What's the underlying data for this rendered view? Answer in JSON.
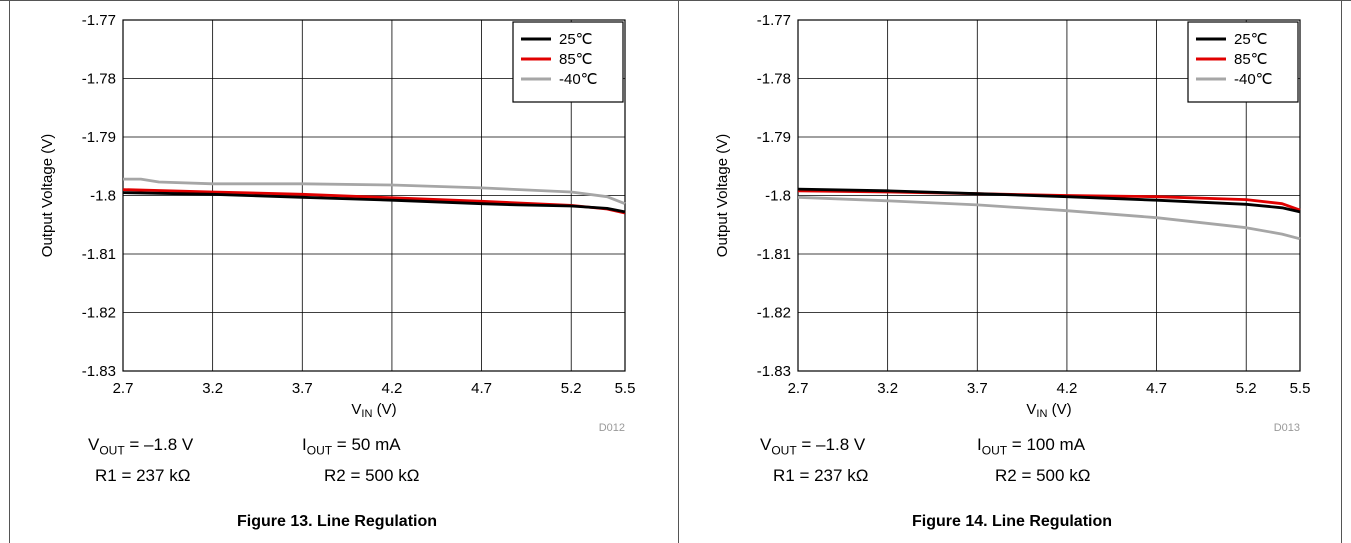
{
  "chart_data": [
    {
      "type": "line",
      "figure_id": "D012",
      "xlabel_main": "V",
      "xlabel_sub": "IN",
      "xlabel_unit": " (V)",
      "ylabel": "Output Voltage (V)",
      "xlim": [
        2.7,
        5.5
      ],
      "ylim": [
        -1.83,
        -1.77
      ],
      "x_ticks": [
        2.7,
        3.2,
        3.7,
        4.2,
        4.7,
        5.2,
        5.5
      ],
      "x_tick_labels": [
        "2.7",
        "3.2",
        "3.7",
        "4.2",
        "4.7",
        "5.2",
        "5.5"
      ],
      "y_ticks": [
        -1.77,
        -1.78,
        -1.79,
        -1.8,
        -1.81,
        -1.82,
        -1.83
      ],
      "y_tick_labels": [
        "-1.77",
        "-1.78",
        "-1.79",
        "-1.8",
        "-1.81",
        "-1.82",
        "-1.83"
      ],
      "grid": true,
      "legend_position": "top-right",
      "series": [
        {
          "name": "25℃",
          "color": "#000000",
          "x": [
            2.7,
            3.2,
            3.7,
            4.2,
            4.7,
            4.9,
            5.2,
            5.4,
            5.5
          ],
          "y": [
            -1.7995,
            -1.7998,
            -1.8003,
            -1.8008,
            -1.8014,
            -1.8016,
            -1.8018,
            -1.8022,
            -1.8028
          ]
        },
        {
          "name": "85℃",
          "color": "#e00000",
          "x": [
            2.7,
            3.2,
            3.7,
            4.2,
            4.7,
            5.2,
            5.4,
            5.5
          ],
          "y": [
            -1.799,
            -1.7994,
            -1.7998,
            -1.8004,
            -1.801,
            -1.8017,
            -1.8023,
            -1.803
          ]
        },
        {
          "name": "-40℃",
          "color": "#a6a6a6",
          "x": [
            2.7,
            2.8,
            2.9,
            3.2,
            3.7,
            4.2,
            4.7,
            5.2,
            5.4,
            5.5
          ],
          "y": [
            -1.7972,
            -1.7972,
            -1.7977,
            -1.798,
            -1.798,
            -1.7982,
            -1.7987,
            -1.7994,
            -1.8002,
            -1.8014
          ]
        }
      ],
      "conditions": {
        "vout_main": "V",
        "vout_sub": "OUT",
        "vout_val": " = –1.8 V",
        "iout_main": "I",
        "iout_sub": "OUT",
        "iout_val": " = 50 mA",
        "r1": "R1 = 237 kΩ",
        "r2": "R2 = 500 kΩ"
      },
      "caption": "Figure 13. Line Regulation"
    },
    {
      "type": "line",
      "figure_id": "D013",
      "xlabel_main": "V",
      "xlabel_sub": "IN",
      "xlabel_unit": " (V)",
      "ylabel": "Output Voltage (V)",
      "xlim": [
        2.7,
        5.5
      ],
      "ylim": [
        -1.83,
        -1.77
      ],
      "x_ticks": [
        2.7,
        3.2,
        3.7,
        4.2,
        4.7,
        5.2,
        5.5
      ],
      "x_tick_labels": [
        "2.7",
        "3.2",
        "3.7",
        "4.2",
        "4.7",
        "5.2",
        "5.5"
      ],
      "y_ticks": [
        -1.77,
        -1.78,
        -1.79,
        -1.8,
        -1.81,
        -1.82,
        -1.83
      ],
      "y_tick_labels": [
        "-1.77",
        "-1.78",
        "-1.79",
        "-1.8",
        "-1.81",
        "-1.82",
        "-1.83"
      ],
      "grid": true,
      "legend_position": "top-right",
      "series": [
        {
          "name": "25℃",
          "color": "#000000",
          "x": [
            2.7,
            3.2,
            3.7,
            4.2,
            4.7,
            5.2,
            5.4,
            5.5
          ],
          "y": [
            -1.7989,
            -1.7992,
            -1.7997,
            -1.8002,
            -1.8008,
            -1.8015,
            -1.8021,
            -1.8028
          ]
        },
        {
          "name": "85℃",
          "color": "#e00000",
          "x": [
            2.7,
            3.2,
            3.7,
            4.2,
            4.7,
            5.2,
            5.4,
            5.5
          ],
          "y": [
            -1.7992,
            -1.7994,
            -1.7997,
            -1.8,
            -1.8002,
            -1.8007,
            -1.8014,
            -1.8025
          ]
        },
        {
          "name": "-40℃",
          "color": "#a6a6a6",
          "x": [
            2.7,
            3.2,
            3.7,
            4.2,
            4.7,
            5.2,
            5.4,
            5.5
          ],
          "y": [
            -1.8003,
            -1.8009,
            -1.8016,
            -1.8026,
            -1.8038,
            -1.8055,
            -1.8066,
            -1.8074
          ]
        }
      ],
      "conditions": {
        "vout_main": "V",
        "vout_sub": "OUT",
        "vout_val": " = –1.8 V",
        "iout_main": "I",
        "iout_sub": "OUT",
        "iout_val": " = 100 mA",
        "r1": "R1 = 237 kΩ",
        "r2": "R2 = 500 kΩ"
      },
      "caption": "Figure 14. Line Regulation"
    }
  ]
}
